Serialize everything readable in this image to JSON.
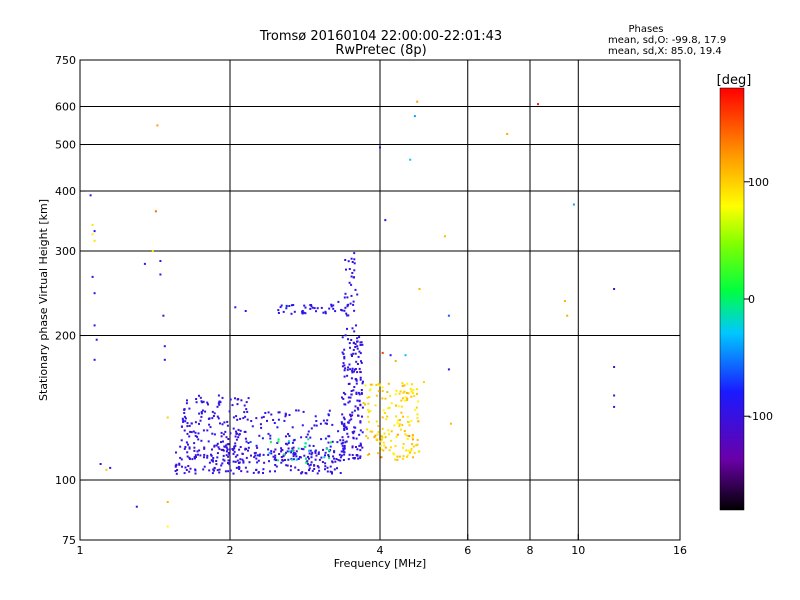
{
  "chart_data": {
    "type": "scatter",
    "title": "Tromsø 20160104 22:00:00-22:01:43",
    "subtitle": "RwPretec (8p)",
    "xlabel": "Frequency [MHz]",
    "ylabel": "Stationary phase Virtual Height [km]",
    "x_scale": "log",
    "y_scale": "log",
    "xlim": [
      1,
      16
    ],
    "ylim": [
      75,
      750
    ],
    "x_ticks": [
      1,
      2,
      4,
      6,
      8,
      10,
      16
    ],
    "x_tick_labels": [
      "1",
      "2",
      "4",
      "6",
      "8",
      "10",
      "16"
    ],
    "x_gridlines": [
      2,
      4,
      6,
      8,
      10
    ],
    "y_ticks": [
      75,
      100,
      200,
      300,
      400,
      500,
      600,
      750
    ],
    "y_tick_labels": [
      "75",
      "100",
      "200",
      "300",
      "400",
      "500",
      "600",
      "750"
    ],
    "y_gridlines": [
      100,
      200,
      300,
      400,
      500,
      600
    ],
    "grid": true,
    "legend": {
      "title": "Phases",
      "lines": [
        "mean, sd,O: -99.8, 17.9",
        "mean, sd,X:  85.0, 19.4"
      ],
      "position": "top-right"
    },
    "colorbar": {
      "label": "[deg]",
      "range": [
        -180,
        180
      ],
      "ticks": [
        100,
        0,
        -100
      ],
      "tick_labels": [
        "100",
        "0",
        "-100"
      ],
      "colormap": "rainbow"
    },
    "series": [
      {
        "points": [
          [
            1.05,
            392,
            -95
          ],
          [
            1.06,
            340,
            90
          ],
          [
            1.06,
            325,
            85
          ],
          [
            1.07,
            330,
            -95
          ],
          [
            1.07,
            315,
            90
          ],
          [
            1.06,
            265,
            -95
          ],
          [
            1.07,
            245,
            -100
          ],
          [
            1.07,
            210,
            -95
          ],
          [
            1.08,
            196,
            -100
          ],
          [
            1.07,
            178,
            -100
          ],
          [
            1.1,
            108,
            -110
          ],
          [
            1.13,
            105,
            100
          ],
          [
            1.15,
            106,
            -100
          ],
          [
            1.3,
            88,
            -110
          ],
          [
            1.35,
            282,
            -95
          ],
          [
            1.4,
            300,
            90
          ],
          [
            1.42,
            363,
            140
          ],
          [
            1.43,
            548,
            120
          ],
          [
            1.45,
            268,
            -95
          ],
          [
            1.45,
            286,
            -95
          ],
          [
            1.47,
            220,
            -100
          ],
          [
            1.48,
            190,
            -95
          ],
          [
            1.48,
            178,
            -100
          ],
          [
            1.5,
            135,
            100
          ],
          [
            1.5,
            90,
            110
          ],
          [
            1.5,
            80,
            80
          ],
          [
            1.6,
            121,
            -100
          ],
          [
            1.8,
            145,
            -95
          ],
          [
            1.9,
            150,
            -100
          ],
          [
            2.05,
            229,
            -95
          ],
          [
            2.15,
            225,
            -90
          ],
          [
            2.2,
            120,
            -60
          ],
          [
            2.5,
            226,
            -95
          ],
          [
            2.6,
            230,
            -30
          ],
          [
            2.8,
            225,
            -90
          ],
          [
            3.0,
            228,
            -95
          ],
          [
            3.2,
            230,
            -100
          ],
          [
            3.3,
            235,
            -95
          ],
          [
            3.4,
            240,
            -100
          ],
          [
            3.5,
            255,
            -95
          ],
          [
            3.52,
            270,
            -100
          ],
          [
            3.55,
            297,
            -95
          ],
          [
            3.58,
            210,
            -100
          ],
          [
            3.6,
            190,
            -95
          ],
          [
            3.65,
            168,
            -100
          ],
          [
            4.0,
            493,
            -100
          ],
          [
            4.05,
            184,
            160
          ],
          [
            4.1,
            348,
            -100
          ],
          [
            4.2,
            182,
            -95
          ],
          [
            4.3,
            177,
            110
          ],
          [
            4.4,
            153,
            100
          ],
          [
            4.5,
            182,
            -30
          ],
          [
            4.6,
            465,
            -30
          ],
          [
            4.7,
            573,
            -40
          ],
          [
            4.75,
            614,
            120
          ],
          [
            4.8,
            250,
            110
          ],
          [
            4.9,
            160,
            100
          ],
          [
            5.4,
            322,
            110
          ],
          [
            5.5,
            170,
            -110
          ],
          [
            5.5,
            220,
            -60
          ],
          [
            5.55,
            131,
            110
          ],
          [
            7.2,
            526,
            115
          ],
          [
            8.3,
            607,
            170
          ],
          [
            9.4,
            236,
            110
          ],
          [
            9.5,
            220,
            115
          ],
          [
            9.8,
            375,
            -40
          ],
          [
            11.8,
            250,
            -100
          ],
          [
            11.8,
            172,
            -100
          ],
          [
            11.8,
            150,
            -100
          ],
          [
            11.8,
            142,
            -100
          ]
        ]
      }
    ]
  }
}
